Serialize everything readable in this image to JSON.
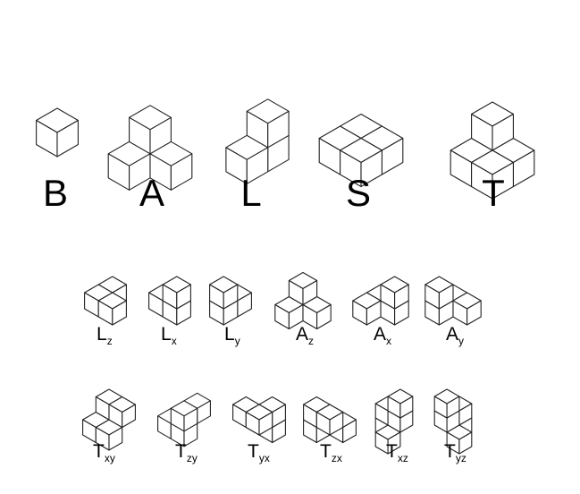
{
  "primary_shapes": [
    {
      "id": "B",
      "label": "B"
    },
    {
      "id": "A",
      "label": "A"
    },
    {
      "id": "L",
      "label": "L"
    },
    {
      "id": "S",
      "label": "S"
    },
    {
      "id": "T",
      "label": "T"
    }
  ],
  "orientation_rows": [
    [
      {
        "id": "Lz",
        "base": "L",
        "sub": "z"
      },
      {
        "id": "Lx",
        "base": "L",
        "sub": "x"
      },
      {
        "id": "Ly",
        "base": "L",
        "sub": "y"
      },
      {
        "id": "Az",
        "base": "A",
        "sub": "z"
      },
      {
        "id": "Ax",
        "base": "A",
        "sub": "x"
      },
      {
        "id": "Ay",
        "base": "A",
        "sub": "y"
      }
    ],
    [
      {
        "id": "Txy",
        "base": "T",
        "sub": "xy"
      },
      {
        "id": "Tzy",
        "base": "T",
        "sub": "zy"
      },
      {
        "id": "Tyx",
        "base": "T",
        "sub": "yx"
      },
      {
        "id": "Tzx",
        "base": "T",
        "sub": "zx"
      },
      {
        "id": "Txz",
        "base": "T",
        "sub": "xz"
      },
      {
        "id": "Tyz",
        "base": "T",
        "sub": "yz"
      }
    ]
  ]
}
